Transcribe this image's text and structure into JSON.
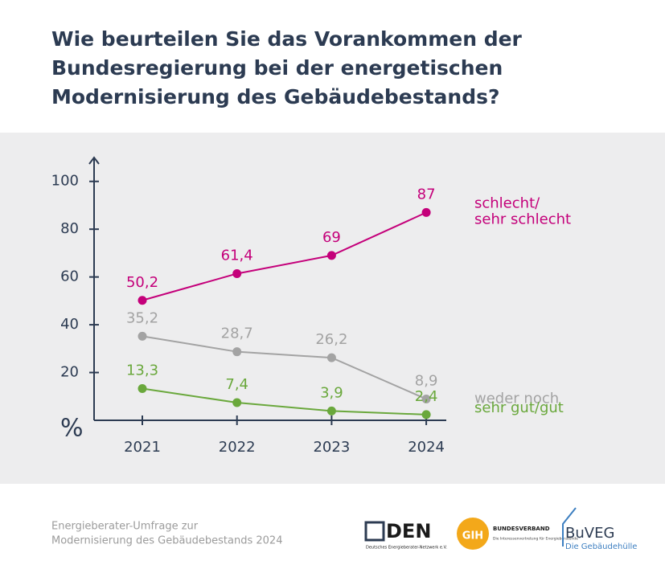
{
  "chart_data": {
    "type": "line",
    "title": [
      "Wie beurteilen Sie das Vorankommen der",
      "Bundesregierung bei der energetischen",
      "Modernisierung des Gebäudebestands?"
    ],
    "y_label": "%",
    "categories": [
      "2021",
      "2022",
      "2023",
      "2024"
    ],
    "series": [
      {
        "name": [
          "schlecht/",
          "sehr schlecht"
        ],
        "color": "#c4007a",
        "values": [
          50.2,
          61.4,
          69,
          87
        ],
        "value_labels": [
          "50,2",
          "61,4",
          "69",
          "87"
        ]
      },
      {
        "name": [
          "weder noch"
        ],
        "color": "#a3a3a3",
        "values": [
          35.2,
          28.7,
          26.2,
          8.9
        ],
        "value_labels": [
          "35,2",
          "28,7",
          "26,2",
          "8,9"
        ]
      },
      {
        "name": [
          "sehr gut/gut"
        ],
        "color": "#6aa83c",
        "values": [
          13.3,
          7.4,
          3.9,
          2.4
        ],
        "value_labels": [
          "13,3",
          "7,4",
          "3,9",
          "2,4"
        ]
      }
    ],
    "ylim": [
      0,
      110
    ],
    "yticks": [
      20,
      40,
      60,
      80,
      100
    ]
  },
  "footer": {
    "source": [
      "Energieberater-Umfrage zur",
      "Modernisierung des Gebäudebestands 2024"
    ],
    "logos": {
      "den": "DEN",
      "den_sub": "Deutsches Energieberater-Netzwerk e.V.",
      "gih": "GIH",
      "gih_title": "BUNDESVERBAND",
      "gih_sub": "Die Interessenvertretung für Energieberatende",
      "buveg": "BuVEG",
      "buveg_sub": "Die Gebäudehülle"
    }
  }
}
